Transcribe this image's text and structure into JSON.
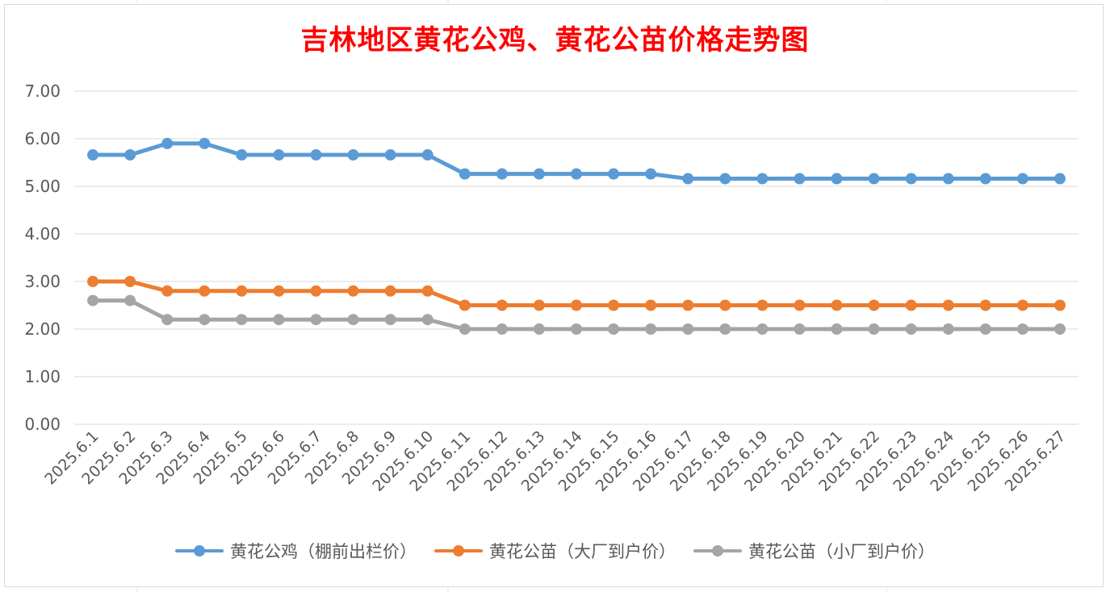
{
  "chart_data": {
    "type": "line",
    "title": "吉林地区黄花公鸡、黄花公苗价格走势图",
    "xlabel": "",
    "ylabel": "",
    "ylim": [
      0,
      7
    ],
    "yticks": [
      "0.00",
      "1.00",
      "2.00",
      "3.00",
      "4.00",
      "5.00",
      "6.00",
      "7.00"
    ],
    "grid": true,
    "legend_position": "bottom",
    "categories": [
      "2025.6.1",
      "2025.6.2",
      "2025.6.3",
      "2025.6.4",
      "2025.6.5",
      "2025.6.6",
      "2025.6.7",
      "2025.6.8",
      "2025.6.9",
      "2025.6.10",
      "2025.6.11",
      "2025.6.12",
      "2025.6.13",
      "2025.6.14",
      "2025.6.15",
      "2025.6.16",
      "2025.6.17",
      "2025.6.18",
      "2025.6.19",
      "2025.6.20",
      "2025.6.21",
      "2025.6.22",
      "2025.6.23",
      "2025.6.24",
      "2025.6.25",
      "2025.6.26",
      "2025.6.27"
    ],
    "series": [
      {
        "name": "黄花公鸡（棚前出栏价）",
        "color": "#5b9bd5",
        "values": [
          5.66,
          5.66,
          5.9,
          5.9,
          5.66,
          5.66,
          5.66,
          5.66,
          5.66,
          5.66,
          5.26,
          5.26,
          5.26,
          5.26,
          5.26,
          5.26,
          5.16,
          5.16,
          5.16,
          5.16,
          5.16,
          5.16,
          5.16,
          5.16,
          5.16,
          5.16,
          5.16
        ]
      },
      {
        "name": "黄花公苗（大厂到户价）",
        "color": "#ed7d31",
        "values": [
          3.0,
          3.0,
          2.8,
          2.8,
          2.8,
          2.8,
          2.8,
          2.8,
          2.8,
          2.8,
          2.5,
          2.5,
          2.5,
          2.5,
          2.5,
          2.5,
          2.5,
          2.5,
          2.5,
          2.5,
          2.5,
          2.5,
          2.5,
          2.5,
          2.5,
          2.5,
          2.5
        ]
      },
      {
        "name": "黄花公苗（小厂到户价）",
        "color": "#a5a5a5",
        "values": [
          2.6,
          2.6,
          2.2,
          2.2,
          2.2,
          2.2,
          2.2,
          2.2,
          2.2,
          2.2,
          2.0,
          2.0,
          2.0,
          2.0,
          2.0,
          2.0,
          2.0,
          2.0,
          2.0,
          2.0,
          2.0,
          2.0,
          2.0,
          2.0,
          2.0,
          2.0,
          2.0
        ]
      }
    ]
  }
}
